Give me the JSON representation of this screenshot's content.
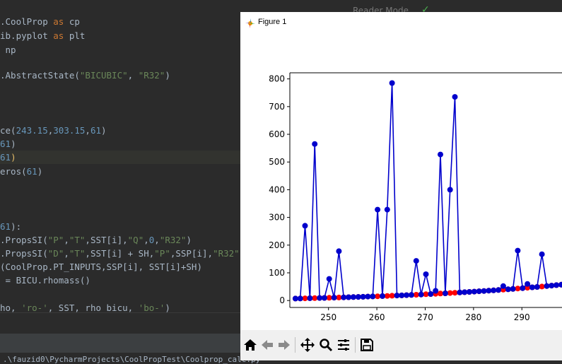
{
  "editor": {
    "lines": [
      {
        "segs": [
          {
            "t": ".CoolProp ",
            "c": ""
          },
          {
            "t": "as",
            "c": "kw"
          },
          {
            "t": " cp",
            "c": ""
          }
        ]
      },
      {
        "segs": [
          {
            "t": "ib.pyplot ",
            "c": ""
          },
          {
            "t": "as",
            "c": "kw"
          },
          {
            "t": " plt",
            "c": ""
          }
        ]
      },
      {
        "segs": [
          {
            "t": " np",
            "c": ""
          }
        ]
      },
      {
        "segs": [
          {
            "t": "",
            "c": ""
          }
        ]
      },
      {
        "segs": [
          {
            "t": ".AbstractState(",
            "c": ""
          },
          {
            "t": "\"BICUBIC\"",
            "c": "str"
          },
          {
            "t": ", ",
            "c": ""
          },
          {
            "t": "\"R32\"",
            "c": "str"
          },
          {
            "t": ")",
            "c": ""
          }
        ]
      },
      {
        "segs": [
          {
            "t": "",
            "c": ""
          }
        ]
      },
      {
        "segs": [
          {
            "t": "",
            "c": ""
          }
        ]
      },
      {
        "segs": [
          {
            "t": "",
            "c": ""
          }
        ]
      },
      {
        "segs": [
          {
            "t": "ce(",
            "c": ""
          },
          {
            "t": "243.15",
            "c": "num"
          },
          {
            "t": ",",
            "c": ""
          },
          {
            "t": "303.15",
            "c": "num"
          },
          {
            "t": ",",
            "c": ""
          },
          {
            "t": "61",
            "c": "num"
          },
          {
            "t": ")",
            "c": ""
          }
        ]
      },
      {
        "segs": [
          {
            "t": "61",
            "c": "num"
          },
          {
            "t": ")",
            "c": ""
          }
        ]
      },
      {
        "segs": [
          {
            "t": "61",
            "c": "num"
          },
          {
            "t": ")",
            "c": "yel"
          }
        ]
      },
      {
        "segs": [
          {
            "t": "eros(",
            "c": ""
          },
          {
            "t": "61",
            "c": "num"
          },
          {
            "t": ")",
            "c": ""
          }
        ]
      },
      {
        "segs": [
          {
            "t": "",
            "c": ""
          }
        ]
      },
      {
        "segs": [
          {
            "t": "",
            "c": ""
          }
        ]
      },
      {
        "segs": [
          {
            "t": "",
            "c": ""
          }
        ]
      },
      {
        "segs": [
          {
            "t": "61",
            "c": "num"
          },
          {
            "t": "):",
            "c": ""
          }
        ]
      },
      {
        "segs": [
          {
            "t": ".PropsSI(",
            "c": ""
          },
          {
            "t": "\"P\"",
            "c": "str"
          },
          {
            "t": ",",
            "c": ""
          },
          {
            "t": "\"T\"",
            "c": "str"
          },
          {
            "t": ",SST[i],",
            "c": ""
          },
          {
            "t": "\"Q\"",
            "c": "str"
          },
          {
            "t": ",",
            "c": ""
          },
          {
            "t": "0",
            "c": "num"
          },
          {
            "t": ",",
            "c": ""
          },
          {
            "t": "\"R32\"",
            "c": "str"
          },
          {
            "t": ")",
            "c": ""
          }
        ]
      },
      {
        "segs": [
          {
            "t": ".PropsSI(",
            "c": ""
          },
          {
            "t": "\"D\"",
            "c": "str"
          },
          {
            "t": ",",
            "c": ""
          },
          {
            "t": "\"T\"",
            "c": "str"
          },
          {
            "t": ",SST[i] + SH,",
            "c": ""
          },
          {
            "t": "\"P\"",
            "c": "str"
          },
          {
            "t": ",SSP[i],",
            "c": ""
          },
          {
            "t": "\"R32\"",
            "c": "str"
          },
          {
            "t": ")",
            "c": ""
          }
        ]
      },
      {
        "segs": [
          {
            "t": "(CoolProp.PT_INPUTS,SSP[i], SST[i]+SH)",
            "c": ""
          }
        ]
      },
      {
        "segs": [
          {
            "t": " = BICU.rhomass()",
            "c": ""
          }
        ]
      },
      {
        "segs": [
          {
            "t": "",
            "c": ""
          }
        ]
      },
      {
        "segs": [
          {
            "t": "ho, ",
            "c": ""
          },
          {
            "t": "'ro-'",
            "c": "str"
          },
          {
            "t": ", SST, rho_bicu, ",
            "c": ""
          },
          {
            "t": "'bo-'",
            "c": "str"
          },
          {
            "t": ")",
            "c": ""
          }
        ]
      }
    ],
    "reader_mode": "Reader Mode",
    "terminal_path": ".\\fauzid0\\PycharmProjects\\CoolPropTest\\Coolprop_calc.py"
  },
  "figure": {
    "title": "Figure 1"
  },
  "colors": {
    "red_series": "#ff0000",
    "blue_series": "#0000cc"
  },
  "chart_data": {
    "type": "line",
    "x_tick_labels": [
      "250",
      "260",
      "270",
      "280",
      "290"
    ],
    "y_tick_labels": [
      "0",
      "100",
      "200",
      "300",
      "400",
      "500",
      "600",
      "700",
      "800"
    ],
    "xlim": [
      242,
      298.3
    ],
    "ylim": [
      -25,
      822
    ],
    "x": [
      243.15,
      244.15,
      245.15,
      246.15,
      247.15,
      248.15,
      249.15,
      250.15,
      251.15,
      252.15,
      253.15,
      254.15,
      255.15,
      256.15,
      257.15,
      258.15,
      259.15,
      260.15,
      261.15,
      262.15,
      263.15,
      264.15,
      265.15,
      266.15,
      267.15,
      268.15,
      269.15,
      270.15,
      271.15,
      272.15,
      273.15,
      274.15,
      275.15,
      276.15,
      277.15,
      278.15,
      279.15,
      280.15,
      281.15,
      282.15,
      283.15,
      284.15,
      285.15,
      286.15,
      287.15,
      288.15,
      289.15,
      290.15,
      291.15,
      292.15,
      293.15,
      294.15,
      295.15,
      296.15,
      297.15,
      298.15
    ],
    "series": [
      {
        "style": "ro-",
        "values": [
          7.1,
          7.5,
          7.9,
          8.3,
          8.7,
          9.1,
          9.5,
          10,
          10.5,
          11,
          11.5,
          12,
          12.5,
          13.1,
          13.6,
          14.2,
          14.8,
          15.4,
          16,
          16.7,
          17.3,
          18,
          18.7,
          19.4,
          20.2,
          21,
          21.8,
          22.6,
          23.4,
          24.3,
          25.2,
          26.1,
          27.1,
          28,
          29,
          30,
          31.1,
          32.2,
          33.3,
          34.4,
          35.6,
          36.8,
          38,
          39.3,
          40.6,
          41.9,
          43.3,
          44.7,
          46.1,
          47.6,
          49.1,
          50.6,
          52.2,
          53.8,
          55.5,
          57.2
        ]
      },
      {
        "style": "bo-",
        "values": [
          7.1,
          7.5,
          270,
          8.3,
          565,
          9.1,
          9.5,
          78,
          10.5,
          178,
          11.5,
          12,
          12.5,
          13.1,
          13.6,
          14.2,
          14.8,
          328,
          16,
          328,
          785,
          18,
          18.7,
          19.4,
          20.2,
          143,
          21.8,
          95,
          23.4,
          35,
          527,
          26.1,
          400,
          735,
          29,
          30,
          31.1,
          32.2,
          33.3,
          34.4,
          35.6,
          36.8,
          38,
          52,
          40.6,
          41.9,
          180,
          44.7,
          60,
          47.6,
          49.1,
          167,
          52.2,
          53.8,
          55.5,
          57.2
        ]
      }
    ]
  }
}
